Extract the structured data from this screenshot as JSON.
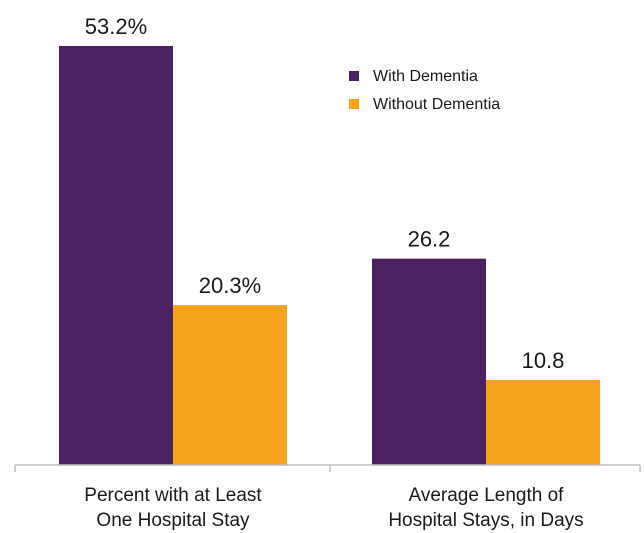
{
  "chart_data": {
    "type": "bar",
    "title": "",
    "xlabel": "",
    "ylabel": "",
    "categories": [
      [
        "Percent with at Least",
        "One Hospital Stay"
      ],
      [
        "Average Length of",
        "Hospital Stays, in Days"
      ]
    ],
    "series": [
      {
        "name": "With Dementia",
        "color": "#4a2260",
        "values": [
          53.2,
          26.2
        ],
        "labels": [
          "53.2%",
          "26.2"
        ]
      },
      {
        "name": "Without Dementia",
        "color": "#f5a21d",
        "values": [
          20.3,
          10.8
        ],
        "labels": [
          "20.3%",
          "10.8"
        ]
      }
    ],
    "ylim": [
      0,
      53.2
    ],
    "grid": false,
    "legend_position": "top-right",
    "axis_color": "#bfbfbf"
  }
}
